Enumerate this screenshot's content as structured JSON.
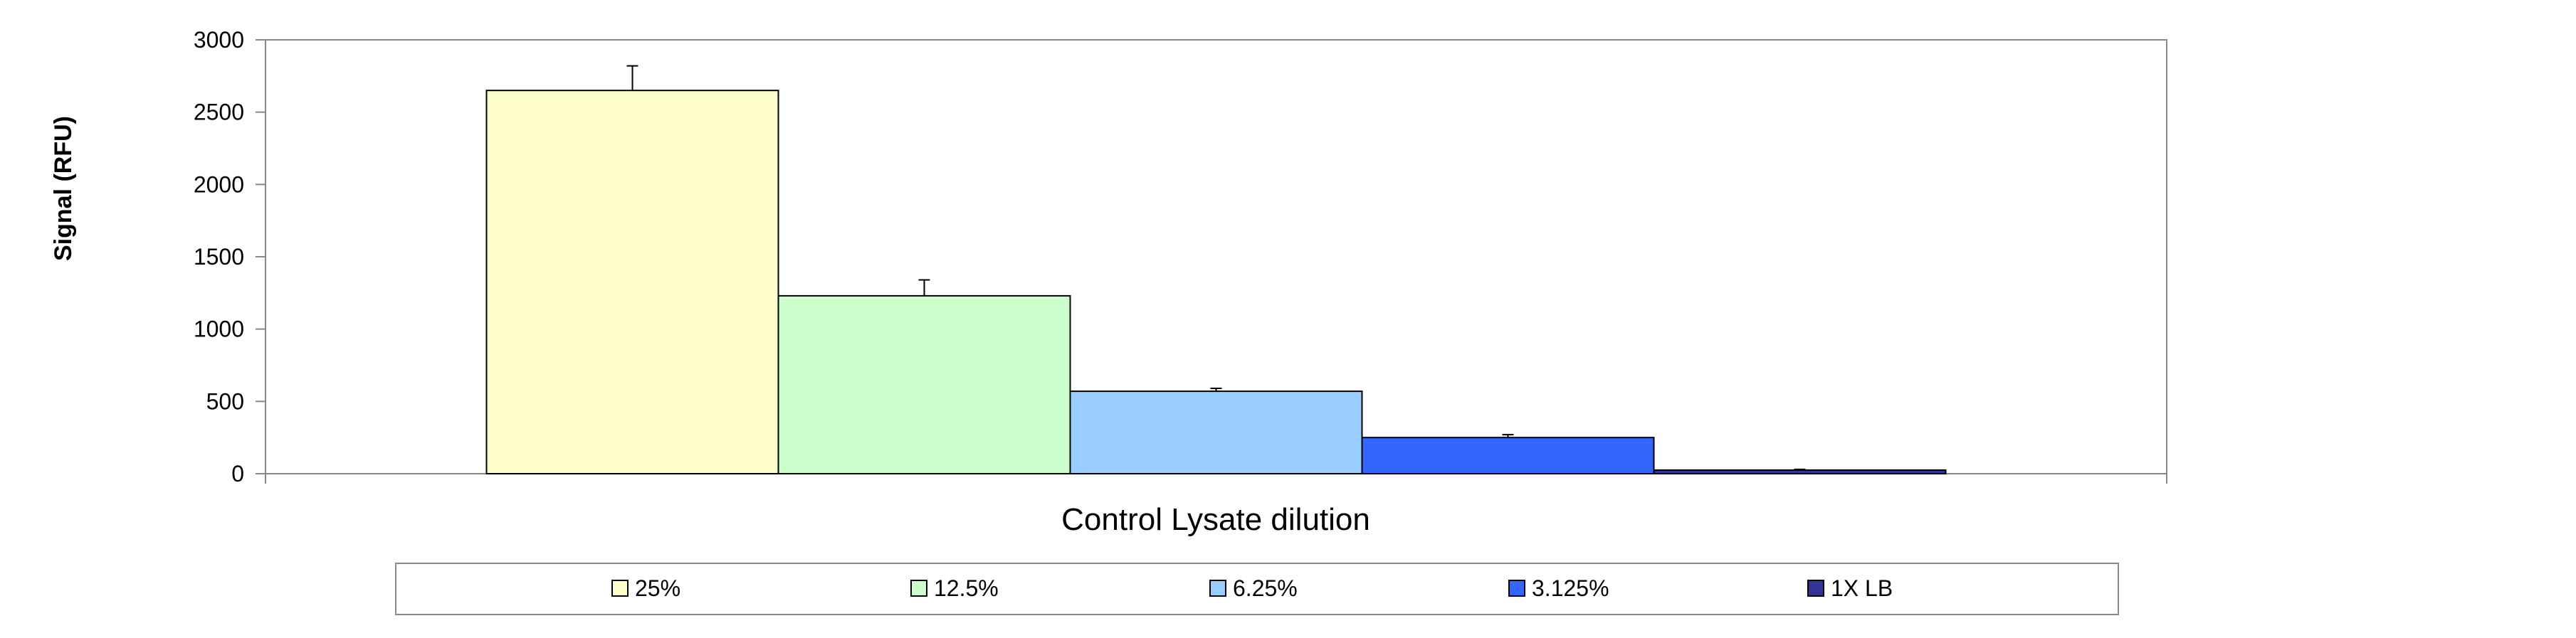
{
  "chart_data": {
    "type": "bar",
    "title": "",
    "xlabel": "Control Lysate dilution",
    "ylabel": "Signal (RFU)",
    "ylim": [
      0,
      3000
    ],
    "yticks": [
      0,
      500,
      1000,
      1500,
      2000,
      2500,
      3000
    ],
    "grid": false,
    "legend_position": "bottom",
    "series": [
      {
        "name": "25%",
        "value": 2650,
        "error": 170,
        "color": "#FFFFCC"
      },
      {
        "name": "12.5%",
        "value": 1230,
        "error": 110,
        "color": "#CCFFCC"
      },
      {
        "name": "6.25%",
        "value": 570,
        "error": 20,
        "color": "#99CCFF"
      },
      {
        "name": "3.125%",
        "value": 250,
        "error": 20,
        "color": "#3366FF"
      },
      {
        "name": "1X LB",
        "value": 25,
        "error": 5,
        "color": "#333399"
      }
    ]
  }
}
